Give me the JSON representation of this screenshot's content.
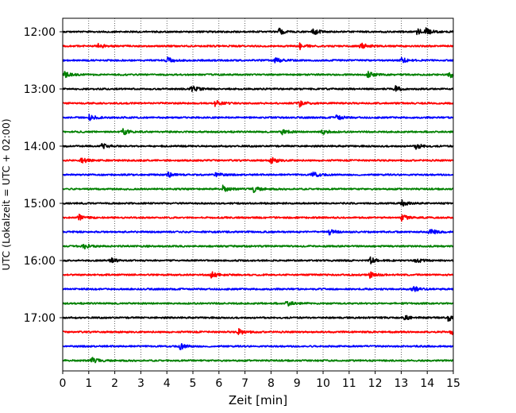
{
  "chart_data": {
    "type": "line",
    "title": "",
    "xlabel": "Zeit  [min]",
    "ylabel": "UTC (Lokalzeit = UTC + 02:00)",
    "xlim": [
      0,
      15
    ],
    "x_ticks": [
      "0",
      "1",
      "2",
      "3",
      "4",
      "5",
      "6",
      "7",
      "8",
      "9",
      "10",
      "11",
      "12",
      "13",
      "14",
      "15"
    ],
    "y_ticks": [
      "12:00",
      "13:00",
      "14:00",
      "15:00",
      "16:00",
      "17:00"
    ],
    "grid": "vertical-dotted",
    "trace_colors": [
      "#000000",
      "#ff0000",
      "#0000ff",
      "#008000"
    ],
    "rows": [
      {
        "start": "12:00",
        "color": "#000000",
        "events_min": [
          8.3,
          9.6,
          13.6,
          13.95
        ]
      },
      {
        "start": "12:15",
        "color": "#ff0000",
        "events_min": [
          1.35,
          9.1,
          11.45
        ]
      },
      {
        "start": "12:30",
        "color": "#0000ff",
        "events_min": [
          4.0,
          8.15,
          13.0
        ]
      },
      {
        "start": "12:45",
        "color": "#008000",
        "events_min": [
          0.05,
          11.7,
          14.85
        ]
      },
      {
        "start": "13:00",
        "color": "#000000",
        "events_min": [
          4.95,
          12.75
        ]
      },
      {
        "start": "13:15",
        "color": "#ff0000",
        "events_min": [
          5.85,
          9.1
        ]
      },
      {
        "start": "13:30",
        "color": "#0000ff",
        "events_min": [
          1.0,
          10.5
        ]
      },
      {
        "start": "13:45",
        "color": "#008000",
        "events_min": [
          2.3,
          8.4,
          9.95
        ]
      },
      {
        "start": "14:00",
        "color": "#000000",
        "events_min": [
          1.5,
          13.55
        ]
      },
      {
        "start": "14:15",
        "color": "#ff0000",
        "events_min": [
          0.7,
          8.0
        ]
      },
      {
        "start": "14:30",
        "color": "#0000ff",
        "events_min": [
          4.05,
          5.85,
          9.6
        ]
      },
      {
        "start": "14:45",
        "color": "#008000",
        "events_min": [
          6.15,
          7.3
        ]
      },
      {
        "start": "15:00",
        "color": "#000000",
        "events_min": [
          13.0
        ]
      },
      {
        "start": "15:15",
        "color": "#ff0000",
        "events_min": [
          0.6,
          13.0
        ]
      },
      {
        "start": "15:30",
        "color": "#0000ff",
        "events_min": [
          10.2,
          14.1
        ]
      },
      {
        "start": "15:45",
        "color": "#008000",
        "events_min": [
          0.8
        ]
      },
      {
        "start": "16:00",
        "color": "#000000",
        "events_min": [
          1.8,
          11.8,
          13.55
        ]
      },
      {
        "start": "16:15",
        "color": "#ff0000",
        "events_min": [
          5.7,
          11.8
        ]
      },
      {
        "start": "16:30",
        "color": "#0000ff",
        "events_min": [
          13.45
        ]
      },
      {
        "start": "16:45",
        "color": "#008000",
        "events_min": [
          8.6
        ]
      },
      {
        "start": "17:00",
        "color": "#000000",
        "events_min": [
          13.05,
          14.8
        ]
      },
      {
        "start": "17:15",
        "color": "#ff0000",
        "events_min": [
          6.75,
          14.9
        ]
      },
      {
        "start": "17:30",
        "color": "#0000ff",
        "events_min": [
          4.5
        ]
      },
      {
        "start": "17:45",
        "color": "#008000",
        "events_min": [
          1.1
        ]
      }
    ]
  }
}
